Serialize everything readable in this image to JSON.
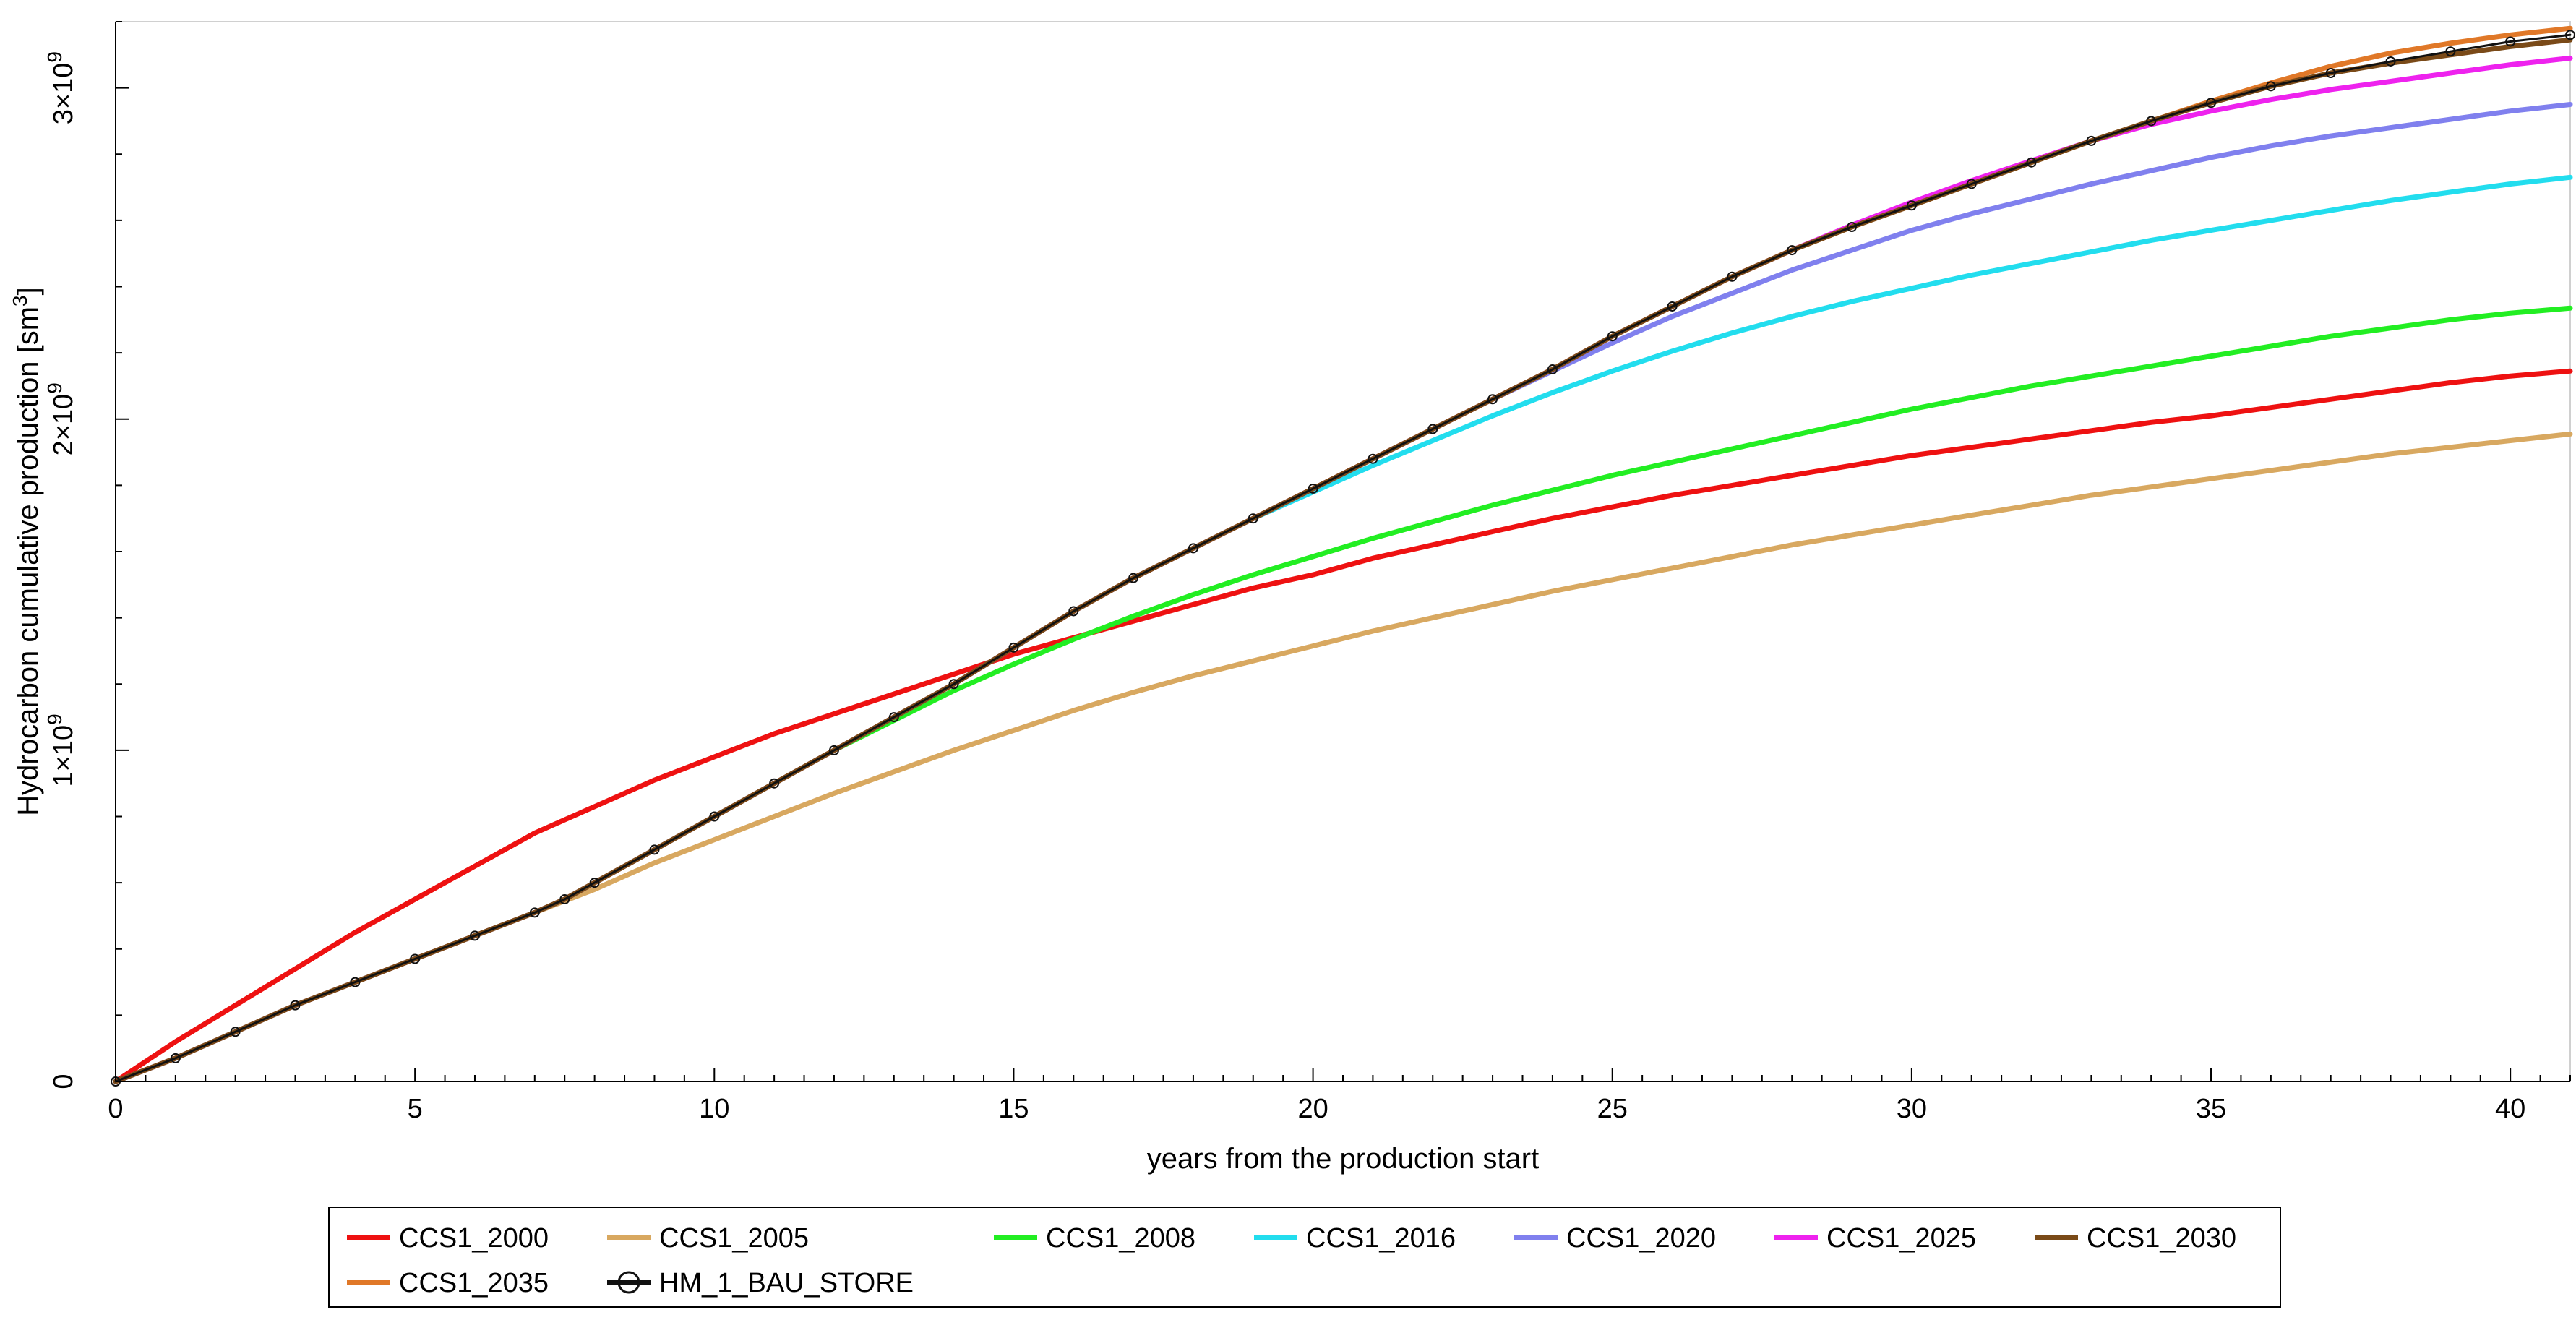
{
  "chart_data": {
    "type": "line",
    "xlabel": "years from the production start",
    "ylabel": "Hydrocarbon cumulative production [sm3]",
    "ylabel_main": "Hydrocarbon cumulative production [sm",
    "ylabel_sup": "3",
    "ylabel_end": "]",
    "xlim": [
      0,
      41
    ],
    "ylim": [
      0,
      3200000000
    ],
    "x_ticks": [
      0,
      5,
      10,
      15,
      20,
      25,
      30,
      35,
      40
    ],
    "x_tick_labels": [
      "0",
      "5",
      "10",
      "15",
      "20",
      "25",
      "30",
      "35",
      "40"
    ],
    "y_ticks": [
      0,
      1000000000,
      2000000000,
      3000000000
    ],
    "y_tick_labels": [
      {
        "mant": "0",
        "exp": ""
      },
      {
        "mant": "1×10",
        "exp": "9"
      },
      {
        "mant": "2×10",
        "exp": "9"
      },
      {
        "mant": "3×10",
        "exp": "9"
      }
    ],
    "grid": false,
    "legend_position": "bottom",
    "x": [
      0,
      1,
      2,
      3,
      4,
      5,
      6,
      7,
      7.5,
      8,
      9,
      10,
      11,
      12,
      13,
      14,
      15,
      16,
      17,
      18,
      19,
      20,
      21,
      22,
      23,
      24,
      25,
      26,
      27,
      28,
      29,
      30,
      31,
      32,
      33,
      34,
      35,
      36,
      37,
      38,
      39,
      40,
      41
    ],
    "series": [
      {
        "name": "CCS1_2000",
        "color": "#ee1111",
        "values": [
          0,
          120000000.0,
          230000000.0,
          340000000.0,
          450000000.0,
          550000000.0,
          650000000.0,
          750000000.0,
          790000000.0,
          830000000.0,
          910000000.0,
          980000000.0,
          1050000000.0,
          1110000000.0,
          1170000000.0,
          1230000000.0,
          1290000000.0,
          1340000000.0,
          1390000000.0,
          1440000000.0,
          1490000000.0,
          1530000000.0,
          1580000000.0,
          1620000000.0,
          1660000000.0,
          1700000000.0,
          1735000000.0,
          1770000000.0,
          1800000000.0,
          1830000000.0,
          1860000000.0,
          1890000000.0,
          1915000000.0,
          1940000000.0,
          1965000000.0,
          1990000000.0,
          2010000000.0,
          2035000000.0,
          2060000000.0,
          2085000000.0,
          2110000000.0,
          2130000000.0,
          2145000000.0
        ]
      },
      {
        "name": "CCS1_2005",
        "color": "#d8a860",
        "values": [
          0,
          70000000.0,
          150000000.0,
          230000000.0,
          300000000.0,
          370000000.0,
          440000000.0,
          510000000.0,
          545000000.0,
          580000000.0,
          660000000.0,
          730000000.0,
          800000000.0,
          870000000.0,
          935000000.0,
          1000000000.0,
          1060000000.0,
          1120000000.0,
          1175000000.0,
          1225000000.0,
          1270000000.0,
          1315000000.0,
          1360000000.0,
          1400000000.0,
          1440000000.0,
          1480000000.0,
          1515000000.0,
          1550000000.0,
          1585000000.0,
          1620000000.0,
          1650000000.0,
          1680000000.0,
          1710000000.0,
          1740000000.0,
          1770000000.0,
          1795000000.0,
          1820000000.0,
          1845000000.0,
          1870000000.0,
          1895000000.0,
          1915000000.0,
          1935000000.0,
          1955000000.0
        ]
      },
      {
        "name": "CCS1_2008",
        "color": "#22ee22",
        "values": [
          0,
          70000000.0,
          150000000.0,
          230000000.0,
          300000000.0,
          370000000.0,
          440000000.0,
          510000000.0,
          550000000.0,
          600000000.0,
          700000000.0,
          800000000.0,
          900000000.0,
          1000000000.0,
          1090000000.0,
          1180000000.0,
          1260000000.0,
          1335000000.0,
          1405000000.0,
          1470000000.0,
          1530000000.0,
          1585000000.0,
          1640000000.0,
          1690000000.0,
          1740000000.0,
          1785000000.0,
          1830000000.0,
          1870000000.0,
          1910000000.0,
          1950000000.0,
          1990000000.0,
          2030000000.0,
          2065000000.0,
          2100000000.0,
          2130000000.0,
          2160000000.0,
          2190000000.0,
          2220000000.0,
          2250000000.0,
          2275000000.0,
          2300000000.0,
          2320000000.0,
          2335000000.0
        ]
      },
      {
        "name": "CCS1_2016",
        "color": "#22ddee",
        "values": [
          0,
          70000000.0,
          150000000.0,
          230000000.0,
          300000000.0,
          370000000.0,
          440000000.0,
          510000000.0,
          550000000.0,
          600000000.0,
          700000000.0,
          800000000.0,
          900000000.0,
          1000000000.0,
          1100000000.0,
          1200000000.0,
          1310000000.0,
          1420000000.0,
          1520000000.0,
          1610000000.0,
          1700000000.0,
          1780000000.0,
          1860000000.0,
          1935000000.0,
          2010000000.0,
          2080000000.0,
          2145000000.0,
          2205000000.0,
          2260000000.0,
          2310000000.0,
          2355000000.0,
          2395000000.0,
          2435000000.0,
          2470000000.0,
          2505000000.0,
          2540000000.0,
          2570000000.0,
          2600000000.0,
          2630000000.0,
          2660000000.0,
          2685000000.0,
          2710000000.0,
          2730000000.0
        ]
      },
      {
        "name": "CCS1_2020",
        "color": "#8080ee",
        "values": [
          0,
          70000000.0,
          150000000.0,
          230000000.0,
          300000000.0,
          370000000.0,
          440000000.0,
          510000000.0,
          550000000.0,
          600000000.0,
          700000000.0,
          800000000.0,
          900000000.0,
          1000000000.0,
          1100000000.0,
          1200000000.0,
          1310000000.0,
          1420000000.0,
          1520000000.0,
          1610000000.0,
          1700000000.0,
          1790000000.0,
          1880000000.0,
          1970000000.0,
          2060000000.0,
          2145000000.0,
          2230000000.0,
          2310000000.0,
          2380000000.0,
          2450000000.0,
          2510000000.0,
          2570000000.0,
          2620000000.0,
          2665000000.0,
          2710000000.0,
          2750000000.0,
          2790000000.0,
          2825000000.0,
          2855000000.0,
          2880000000.0,
          2905000000.0,
          2930000000.0,
          2950000000.0
        ]
      },
      {
        "name": "CCS1_2025",
        "color": "#ee22ee",
        "values": [
          0,
          70000000.0,
          150000000.0,
          230000000.0,
          300000000.0,
          370000000.0,
          440000000.0,
          510000000.0,
          550000000.0,
          600000000.0,
          700000000.0,
          800000000.0,
          900000000.0,
          1000000000.0,
          1100000000.0,
          1200000000.0,
          1310000000.0,
          1420000000.0,
          1520000000.0,
          1610000000.0,
          1700000000.0,
          1790000000.0,
          1880000000.0,
          1970000000.0,
          2060000000.0,
          2150000000.0,
          2250000000.0,
          2340000000.0,
          2430000000.0,
          2510000000.0,
          2585000000.0,
          2655000000.0,
          2720000000.0,
          2780000000.0,
          2840000000.0,
          2890000000.0,
          2930000000.0,
          2965000000.0,
          2995000000.0,
          3020000000.0,
          3045000000.0,
          3070000000.0,
          3090000000.0
        ]
      },
      {
        "name": "CCS1_2030",
        "color": "#7a4a18",
        "values": [
          0,
          70000000.0,
          150000000.0,
          230000000.0,
          300000000.0,
          370000000.0,
          440000000.0,
          510000000.0,
          550000000.0,
          600000000.0,
          700000000.0,
          800000000.0,
          900000000.0,
          1000000000.0,
          1100000000.0,
          1200000000.0,
          1310000000.0,
          1420000000.0,
          1520000000.0,
          1610000000.0,
          1700000000.0,
          1790000000.0,
          1880000000.0,
          1970000000.0,
          2060000000.0,
          2150000000.0,
          2250000000.0,
          2340000000.0,
          2430000000.0,
          2510000000.0,
          2580000000.0,
          2645000000.0,
          2710000000.0,
          2775000000.0,
          2840000000.0,
          2900000000.0,
          2955000000.0,
          3005000000.0,
          3045000000.0,
          3075000000.0,
          3100000000.0,
          3125000000.0,
          3145000000.0
        ]
      },
      {
        "name": "CCS1_2035",
        "color": "#e07828",
        "values": [
          0,
          70000000.0,
          150000000.0,
          230000000.0,
          300000000.0,
          370000000.0,
          440000000.0,
          510000000.0,
          550000000.0,
          600000000.0,
          700000000.0,
          800000000.0,
          900000000.0,
          1000000000.0,
          1100000000.0,
          1200000000.0,
          1310000000.0,
          1420000000.0,
          1520000000.0,
          1610000000.0,
          1700000000.0,
          1790000000.0,
          1880000000.0,
          1970000000.0,
          2060000000.0,
          2150000000.0,
          2250000000.0,
          2340000000.0,
          2430000000.0,
          2510000000.0,
          2580000000.0,
          2645000000.0,
          2710000000.0,
          2775000000.0,
          2840000000.0,
          2900000000.0,
          2960000000.0,
          3015000000.0,
          3065000000.0,
          3105000000.0,
          3135000000.0,
          3160000000.0,
          3180000000.0
        ]
      },
      {
        "name": "HM_1_BAU_STORE",
        "color": "#111111",
        "marker": "circle",
        "values": [
          0,
          70000000.0,
          150000000.0,
          230000000.0,
          300000000.0,
          370000000.0,
          440000000.0,
          510000000.0,
          550000000.0,
          600000000.0,
          700000000.0,
          800000000.0,
          900000000.0,
          1000000000.0,
          1100000000.0,
          1200000000.0,
          1310000000.0,
          1420000000.0,
          1520000000.0,
          1610000000.0,
          1700000000.0,
          1790000000.0,
          1880000000.0,
          1970000000.0,
          2060000000.0,
          2150000000.0,
          2250000000.0,
          2340000000.0,
          2430000000.0,
          2510000000.0,
          2580000000.0,
          2645000000.0,
          2710000000.0,
          2775000000.0,
          2840000000.0,
          2900000000.0,
          2955000000.0,
          3005000000.0,
          3045000000.0,
          3080000000.0,
          3110000000.0,
          3140000000.0,
          3160000000.0
        ]
      }
    ]
  }
}
